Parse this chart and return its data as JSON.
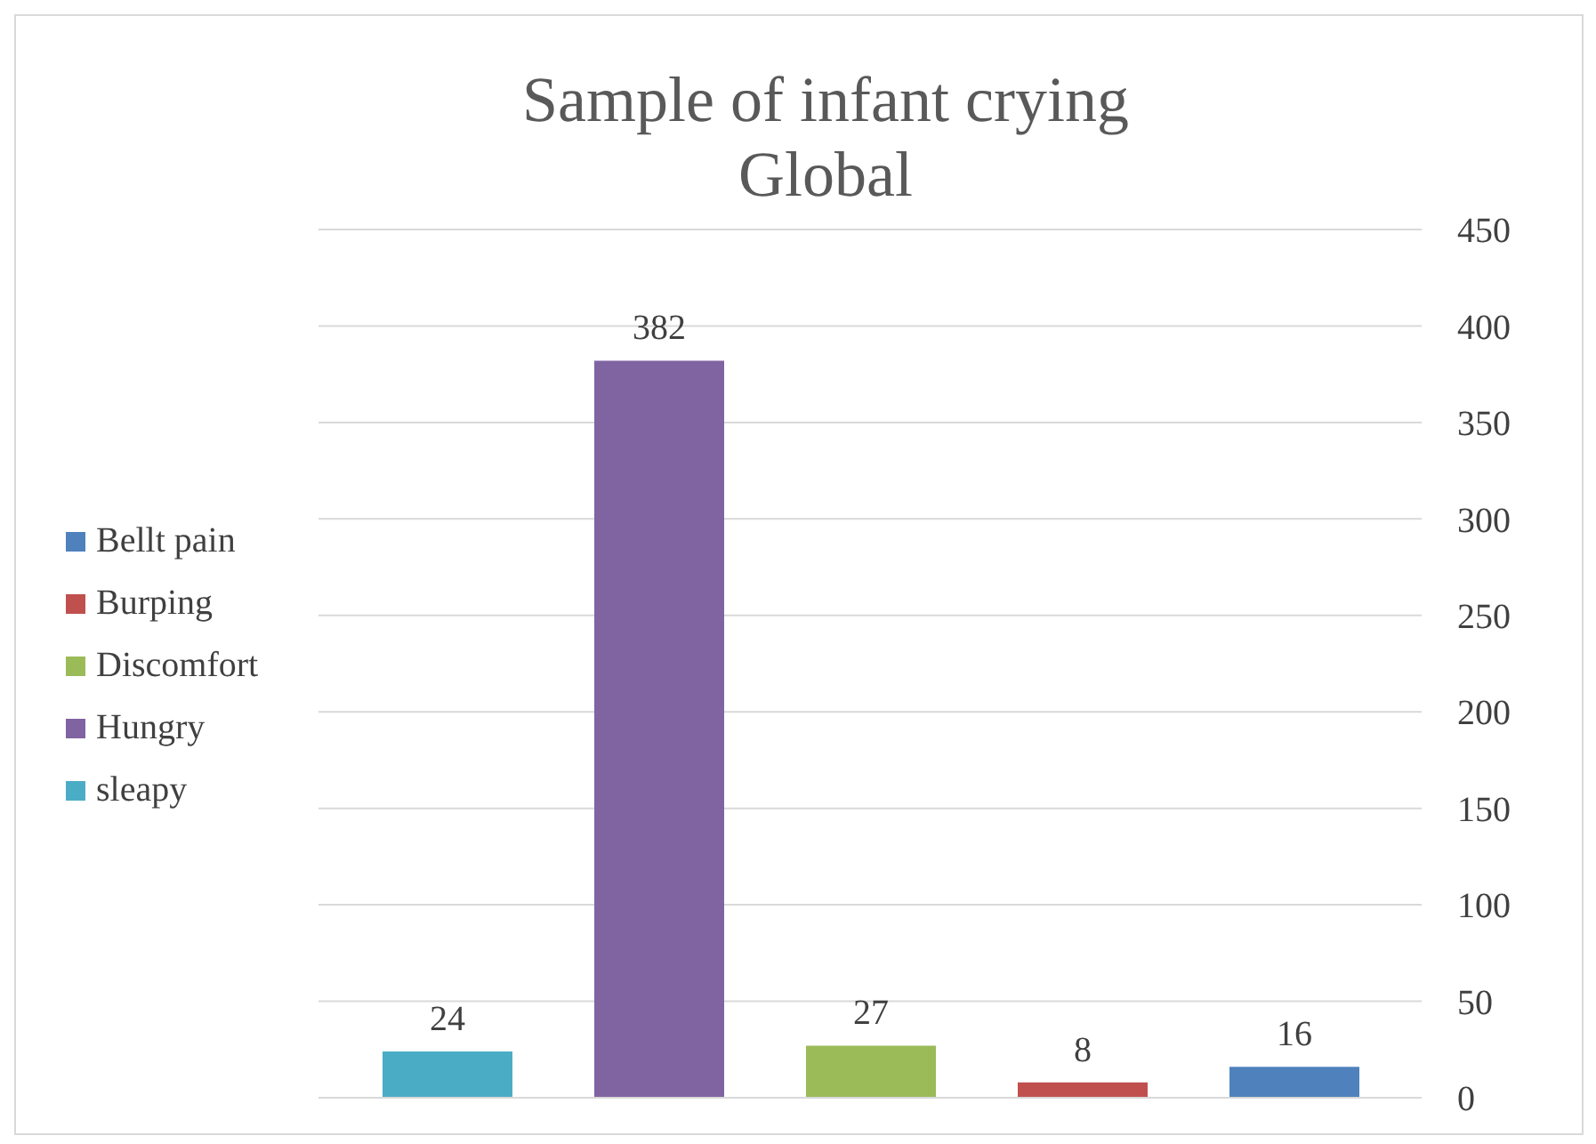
{
  "chart_data": {
    "type": "bar",
    "title": "Sample of infant crying\nGlobal",
    "categories": [
      null
    ],
    "series": [
      {
        "name": "sleapy",
        "color": "#4bacc6",
        "values": [
          24
        ]
      },
      {
        "name": "Hungry",
        "color": "#8064a2",
        "values": [
          382
        ]
      },
      {
        "name": "Discomfort",
        "color": "#9bbb59",
        "values": [
          27
        ]
      },
      {
        "name": "Burping",
        "color": "#c0504d",
        "values": [
          8
        ]
      },
      {
        "name": "Bellt pain",
        "color": "#4f81bd",
        "values": [
          16
        ]
      }
    ],
    "ylim": [
      0,
      450
    ],
    "yticks": [
      0,
      50,
      100,
      150,
      200,
      250,
      300,
      350,
      400,
      450
    ],
    "grid": "y",
    "legend": "left",
    "data_labels": true
  }
}
